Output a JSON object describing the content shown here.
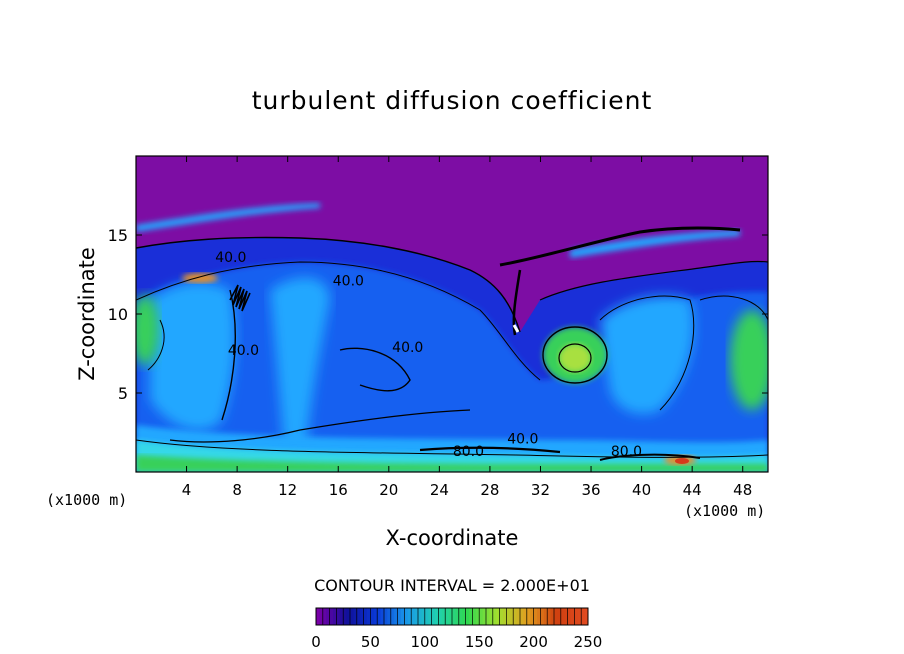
{
  "chart_data": {
    "type": "heatmap",
    "title": "turbulent diffusion coefficient",
    "xlabel": "X-coordinate",
    "ylabel": "Z-coordinate",
    "x_unit": "(x1000 m)",
    "xlim": [
      0,
      50
    ],
    "ylim": [
      0,
      20
    ],
    "x_ticks": [
      4,
      8,
      12,
      16,
      20,
      24,
      28,
      32,
      36,
      40,
      44,
      48
    ],
    "y_ticks": [
      5,
      10,
      15
    ],
    "contour_labels": [
      {
        "text": "40.0",
        "x": 7.5,
        "y": 13.3
      },
      {
        "text": "40.0",
        "x": 16.8,
        "y": 11.8
      },
      {
        "text": "40.0",
        "x": 8.5,
        "y": 7.4
      },
      {
        "text": "40.0",
        "x": 21.5,
        "y": 7.6
      },
      {
        "text": "40.0",
        "x": 30.6,
        "y": 1.8
      },
      {
        "text": "80.0",
        "x": 26.3,
        "y": 1.0
      },
      {
        "text": "80.0",
        "x": 38.8,
        "y": 1.0
      }
    ],
    "contour_interval_label": "CONTOUR INTERVAL = 2.000E+01",
    "colorbar": {
      "min": 0,
      "max": 250,
      "ticks": [
        0,
        50,
        100,
        150,
        200,
        250
      ],
      "colors": [
        "#7a00a8",
        "#10109a",
        "#0a3ad8",
        "#1a9ae8",
        "#20d0b0",
        "#30d850",
        "#a0e030",
        "#e0a020",
        "#d04010",
        "#e04a20"
      ]
    },
    "field_colors": {
      "stratosphere": "#7d0da4",
      "deep_blue": "#1a2fd8",
      "blue": "#1560f0",
      "light_blue": "#23a7ff",
      "cyan": "#35d8e8",
      "green": "#37d05a",
      "yellow_green": "#a8e040",
      "orange": "#e6902a",
      "red": "#d83a1a"
    }
  }
}
